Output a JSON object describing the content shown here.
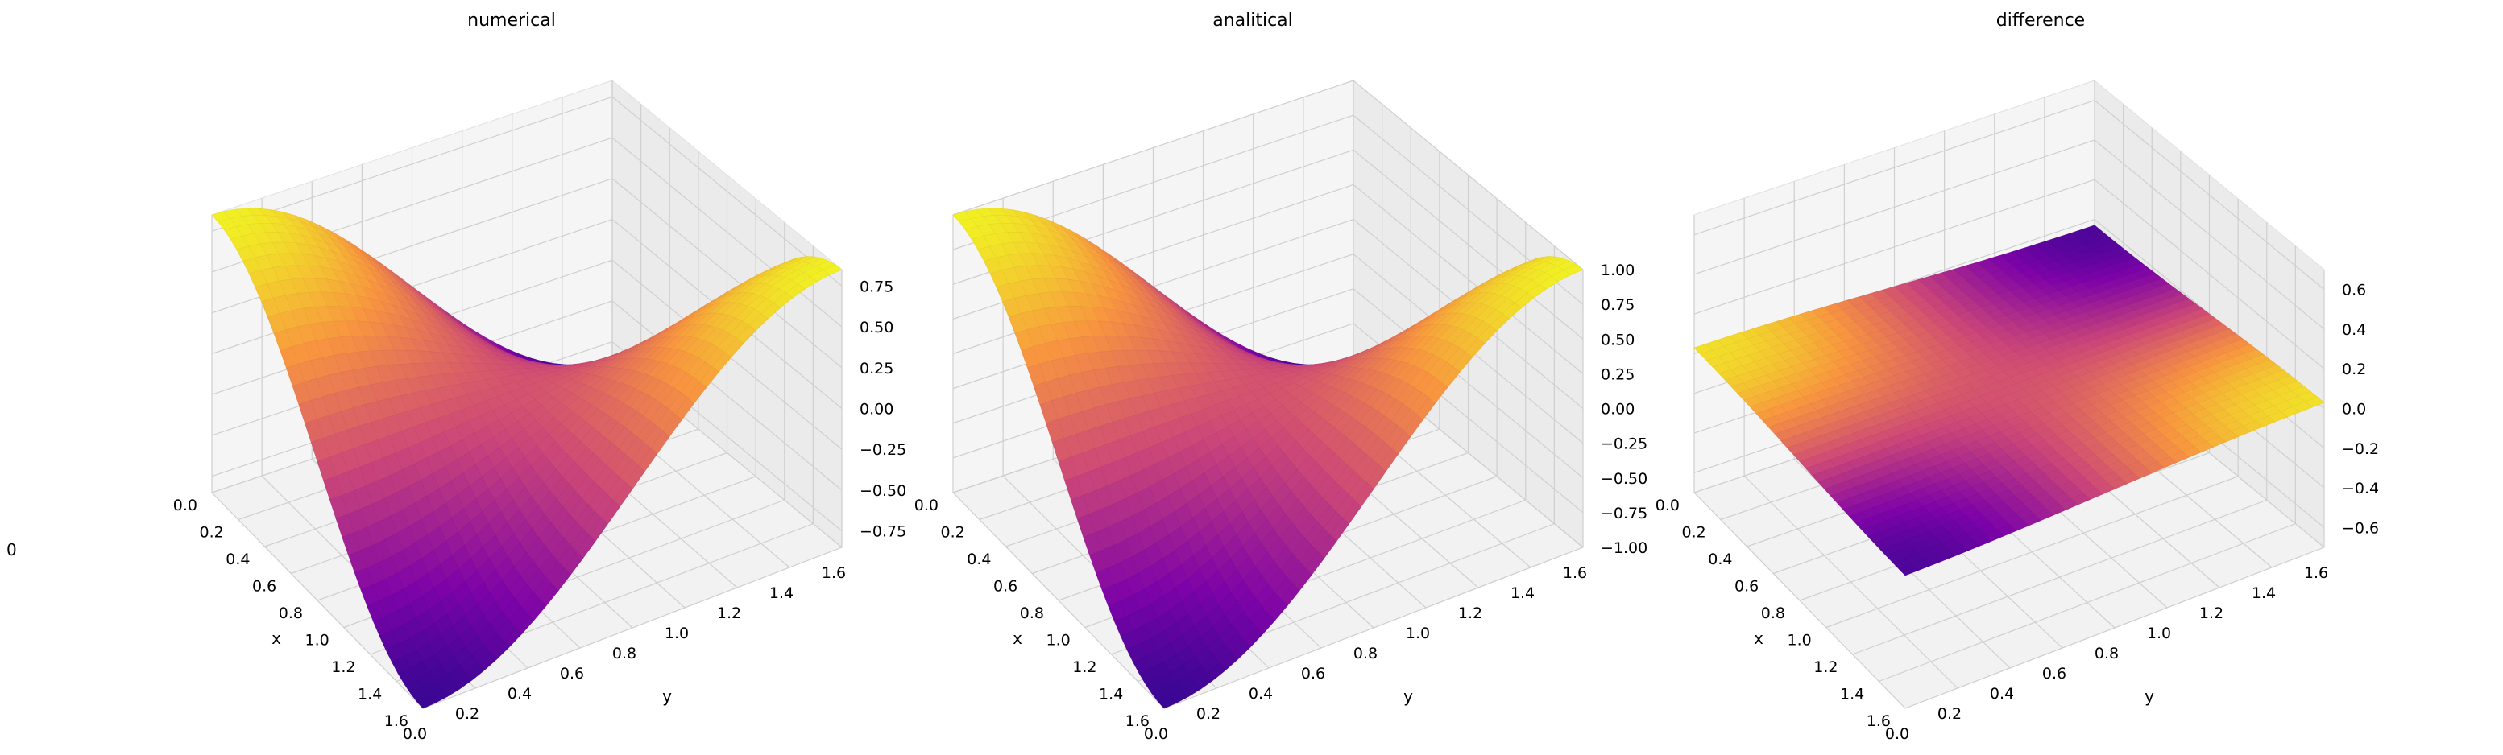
{
  "figure": {
    "left_edge_text": "0"
  },
  "chart_data": [
    {
      "type": "surface3d",
      "title": "numerical",
      "xlabel": "x",
      "ylabel": "y",
      "zlabel": "",
      "xlim": [
        0,
        1.6
      ],
      "ylim": [
        0,
        1.6
      ],
      "zlim": [
        -0.85,
        0.85
      ],
      "x_ticks": [
        "0.0",
        "0.2",
        "0.4",
        "0.6",
        "0.8",
        "1.0",
        "1.2",
        "1.4",
        "1.6"
      ],
      "y_ticks": [
        "0.0",
        "0.2",
        "0.4",
        "0.6",
        "0.8",
        "1.0",
        "1.2",
        "1.4",
        "1.6"
      ],
      "z_ticks": [
        {
          "value": -0.75,
          "label": "−0.75"
        },
        {
          "value": -0.5,
          "label": "−0.50"
        },
        {
          "value": -0.25,
          "label": "−0.25"
        },
        {
          "value": 0.0,
          "label": "0.00"
        },
        {
          "value": 0.25,
          "label": "0.25"
        },
        {
          "value": 0.5,
          "label": "0.50"
        },
        {
          "value": 0.75,
          "label": "0.75"
        }
      ],
      "function": "z = cos(2x)·cos(2y), x,y in [0, π/2]",
      "amplitude": 0.85,
      "colormap": "plasma",
      "grid": true
    },
    {
      "type": "surface3d",
      "title": "analitical",
      "xlabel": "x",
      "ylabel": "y",
      "zlabel": "",
      "xlim": [
        0,
        1.6
      ],
      "ylim": [
        0,
        1.6
      ],
      "zlim": [
        -1.0,
        1.0
      ],
      "x_ticks": [
        "0.0",
        "0.2",
        "0.4",
        "0.6",
        "0.8",
        "1.0",
        "1.2",
        "1.4",
        "1.6"
      ],
      "y_ticks": [
        "0.0",
        "0.2",
        "0.4",
        "0.6",
        "0.8",
        "1.0",
        "1.2",
        "1.4",
        "1.6"
      ],
      "z_ticks": [
        {
          "value": -1.0,
          "label": "−1.00"
        },
        {
          "value": -0.75,
          "label": "−0.75"
        },
        {
          "value": -0.5,
          "label": "−0.50"
        },
        {
          "value": -0.25,
          "label": "−0.25"
        },
        {
          "value": 0.0,
          "label": "0.00"
        },
        {
          "value": 0.25,
          "label": "0.25"
        },
        {
          "value": 0.5,
          "label": "0.50"
        },
        {
          "value": 0.75,
          "label": "0.75"
        },
        {
          "value": 1.0,
          "label": "1.00"
        }
      ],
      "function": "z = cos(2x)·cos(2y), x,y in [0, π/2]",
      "amplitude": 1.0,
      "colormap": "plasma",
      "grid": true
    },
    {
      "type": "surface3d",
      "title": "difference",
      "xlabel": "x",
      "ylabel": "y",
      "zlabel": "",
      "xlim": [
        0,
        1.6
      ],
      "ylim": [
        0,
        1.6
      ],
      "zlim": [
        -0.7,
        0.7
      ],
      "x_ticks": [
        "0.0",
        "0.2",
        "0.4",
        "0.6",
        "0.8",
        "1.0",
        "1.2",
        "1.4",
        "1.6"
      ],
      "y_ticks": [
        "0.0",
        "0.2",
        "0.4",
        "0.6",
        "0.8",
        "1.0",
        "1.2",
        "1.4",
        "1.6"
      ],
      "z_ticks": [
        {
          "value": -0.6,
          "label": "−0.6"
        },
        {
          "value": -0.4,
          "label": "−0.4"
        },
        {
          "value": -0.2,
          "label": "−0.2"
        },
        {
          "value": 0.0,
          "label": "0.0"
        },
        {
          "value": 0.2,
          "label": "0.2"
        },
        {
          "value": 0.4,
          "label": "0.4"
        },
        {
          "value": 0.6,
          "label": "0.6"
        }
      ],
      "function": "small residual, color varies like cos(2x)·cos(2y); surface nearly flat",
      "amplitude": 0.0,
      "color_pattern": "cos(2x)·cos(2y)",
      "colormap": "plasma",
      "grid": true
    }
  ]
}
